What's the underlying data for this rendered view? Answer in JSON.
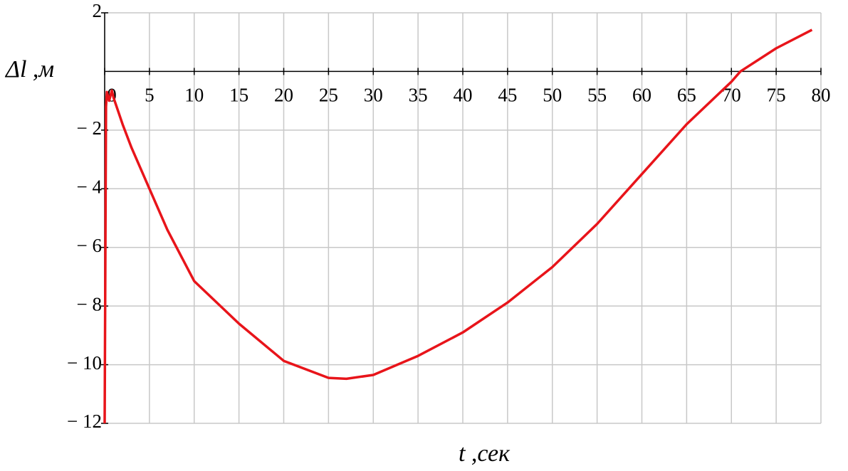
{
  "chart_data": {
    "type": "line",
    "x_label": "t ,сек",
    "y_label": "Δl ,м",
    "x": [
      0,
      0.15,
      0.25,
      0.5,
      0.8,
      1,
      2,
      3,
      4,
      5,
      7,
      10,
      15,
      20,
      25,
      27,
      30,
      35,
      40,
      45,
      50,
      55,
      60,
      65,
      70,
      71,
      75,
      79
    ],
    "values": [
      -12,
      -1.2,
      -0.7,
      -1.0,
      -0.65,
      -0.9,
      -1.8,
      -2.6,
      -3.3,
      -4.0,
      -5.4,
      -7.15,
      -8.6,
      -9.87,
      -10.45,
      -10.48,
      -10.35,
      -9.7,
      -8.9,
      -7.88,
      -6.67,
      -5.2,
      -3.5,
      -1.8,
      -0.35,
      0,
      0.79,
      1.42
    ],
    "color": "#e8141a",
    "xlim": [
      0,
      80
    ],
    "ylim": [
      -12,
      2
    ],
    "xticks": [
      0,
      5,
      10,
      15,
      20,
      25,
      30,
      35,
      40,
      45,
      50,
      55,
      60,
      65,
      70,
      75,
      80
    ],
    "yticks": [
      2,
      {
        "value": -2,
        "label": "− 2"
      },
      {
        "value": -4,
        "label": "− 4"
      },
      {
        "value": -6,
        "label": "− 6"
      },
      {
        "value": -8,
        "label": "− 8"
      },
      {
        "value": -10,
        "label": "− 10"
      },
      {
        "value": -12,
        "label": "− 12"
      }
    ],
    "grid": true
  }
}
